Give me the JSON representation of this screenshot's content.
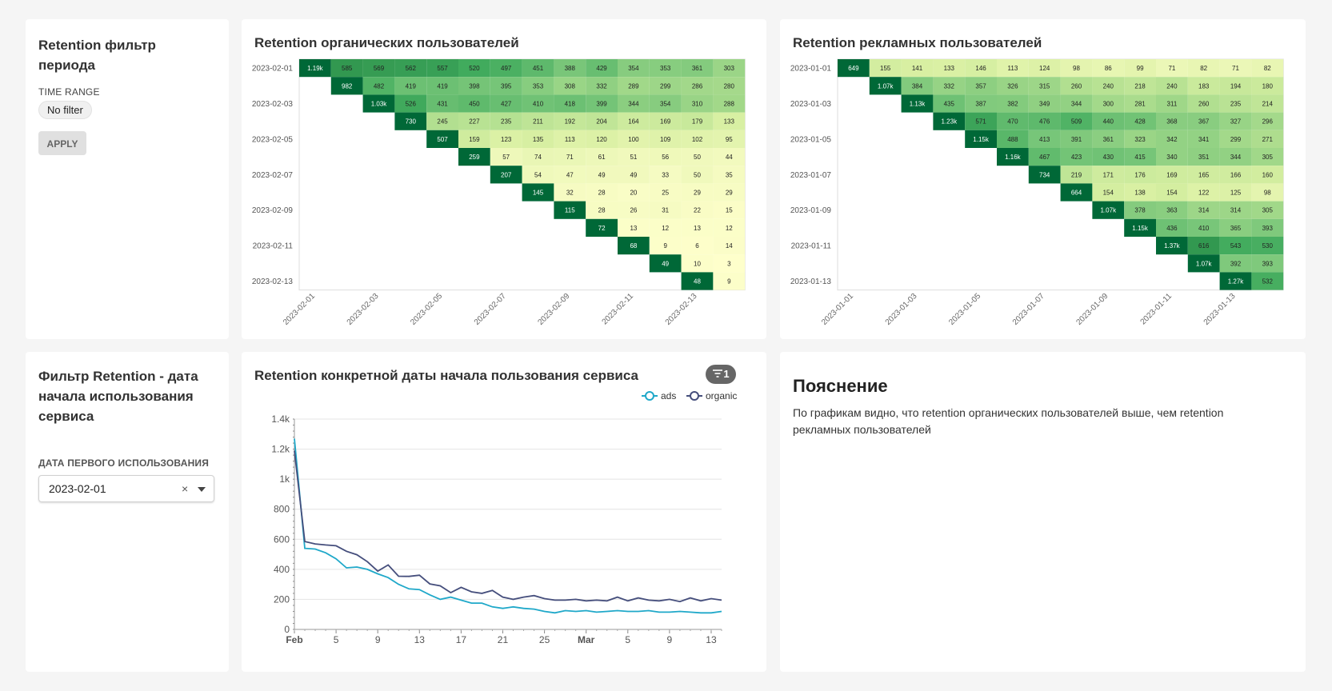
{
  "filter_period": {
    "title": "Retention фильтр периода",
    "label": "TIME RANGE",
    "value": "No filter",
    "apply": "APPLY"
  },
  "organic": {
    "title": "Retention органических пользователей",
    "row_labels": [
      "2023-02-01",
      "2023-02-03",
      "2023-02-05",
      "2023-02-07",
      "2023-02-09",
      "2023-02-11",
      "2023-02-13"
    ],
    "col_labels": [
      "2023-02-01",
      "2023-02-03",
      "2023-02-05",
      "2023-02-07",
      "2023-02-09",
      "2023-02-11",
      "2023-02-13"
    ],
    "rows": [
      [
        "1.19k",
        "585",
        "569",
        "562",
        "557",
        "520",
        "497",
        "451",
        "388",
        "429",
        "354",
        "353",
        "361",
        "303"
      ],
      [
        "982",
        "482",
        "419",
        "419",
        "398",
        "395",
        "353",
        "308",
        "332",
        "289",
        "299",
        "286",
        "280"
      ],
      [
        "1.03k",
        "526",
        "431",
        "450",
        "427",
        "410",
        "418",
        "399",
        "344",
        "354",
        "310",
        "288"
      ],
      [
        "730",
        "245",
        "227",
        "235",
        "211",
        "192",
        "204",
        "164",
        "169",
        "179",
        "133"
      ],
      [
        "507",
        "159",
        "123",
        "135",
        "113",
        "120",
        "100",
        "109",
        "102",
        "95"
      ],
      [
        "259",
        "57",
        "74",
        "71",
        "61",
        "51",
        "56",
        "50",
        "44"
      ],
      [
        "207",
        "54",
        "47",
        "49",
        "49",
        "33",
        "50",
        "35"
      ],
      [
        "145",
        "32",
        "28",
        "20",
        "25",
        "29",
        "29"
      ],
      [
        "115",
        "28",
        "26",
        "31",
        "22",
        "15"
      ],
      [
        "72",
        "13",
        "12",
        "13",
        "12"
      ],
      [
        "68",
        "9",
        "6",
        "14"
      ],
      [
        "49",
        "10",
        "3"
      ],
      [
        "48",
        "9"
      ]
    ]
  },
  "ads": {
    "title": "Retention рекламных пользователей",
    "row_labels": [
      "2023-01-01",
      "2023-01-03",
      "2023-01-05",
      "2023-01-07",
      "2023-01-09",
      "2023-01-11",
      "2023-01-13"
    ],
    "col_labels": [
      "2023-01-01",
      "2023-01-03",
      "2023-01-05",
      "2023-01-07",
      "2023-01-09",
      "2023-01-11",
      "2023-01-13"
    ],
    "rows": [
      [
        "649",
        "155",
        "141",
        "133",
        "146",
        "113",
        "124",
        "98",
        "86",
        "99",
        "71",
        "82",
        "71",
        "82"
      ],
      [
        "1.07k",
        "384",
        "332",
        "357",
        "326",
        "315",
        "260",
        "240",
        "218",
        "240",
        "183",
        "194",
        "180"
      ],
      [
        "1.13k",
        "435",
        "387",
        "382",
        "349",
        "344",
        "300",
        "281",
        "311",
        "260",
        "235",
        "214"
      ],
      [
        "1.23k",
        "571",
        "470",
        "476",
        "509",
        "440",
        "428",
        "368",
        "367",
        "327",
        "296"
      ],
      [
        "1.15k",
        "488",
        "413",
        "391",
        "361",
        "323",
        "342",
        "341",
        "299",
        "271"
      ],
      [
        "1.16k",
        "467",
        "423",
        "430",
        "415",
        "340",
        "351",
        "344",
        "305"
      ],
      [
        "734",
        "219",
        "171",
        "176",
        "169",
        "165",
        "166",
        "160"
      ],
      [
        "664",
        "154",
        "138",
        "154",
        "122",
        "125",
        "98"
      ],
      [
        "1.07k",
        "378",
        "363",
        "314",
        "314",
        "305"
      ],
      [
        "1.15k",
        "436",
        "410",
        "365",
        "393"
      ],
      [
        "1.37k",
        "616",
        "543",
        "530"
      ],
      [
        "1.07k",
        "392",
        "393"
      ],
      [
        "1.27k",
        "532"
      ]
    ]
  },
  "filter_date": {
    "title": "Фильтр Retention - дата начала использования сервиса",
    "label": "ДАТА ПЕРВОГО ИСПОЛЬЗОВАНИЯ",
    "value": "2023-02-01",
    "clear": "×"
  },
  "line_chart": {
    "title": "Retention конкретной даты начала пользования сервиса",
    "badge": "1"
  },
  "explain": {
    "title": "Пояснение",
    "text": "По графикам видно, что retention органических пользователей выше, чем retention рекламных пользователей"
  },
  "chart_data": [
    {
      "type": "heatmap",
      "title": "Retention органических пользователей",
      "colorscale": [
        "#ffffcc",
        "#006837"
      ]
    },
    {
      "type": "heatmap",
      "title": "Retention рекламных пользователей",
      "colorscale": [
        "#ffffcc",
        "#006837"
      ]
    },
    {
      "type": "line",
      "title": "Retention конкретной даты начала пользования сервиса",
      "x_tick_labels": [
        "Feb",
        "5",
        "9",
        "13",
        "17",
        "21",
        "25",
        "Mar",
        "5",
        "9",
        "13"
      ],
      "y_ticks": [
        "0",
        "200",
        "400",
        "600",
        "800",
        "1k",
        "1.2k",
        "1.4k"
      ],
      "ylim": [
        0,
        1400
      ],
      "x": [
        "2023-02-01",
        "2023-02-02",
        "2023-02-03",
        "2023-02-04",
        "2023-02-05",
        "2023-02-06",
        "2023-02-07",
        "2023-02-08",
        "2023-02-09",
        "2023-02-10",
        "2023-02-11",
        "2023-02-12",
        "2023-02-13",
        "2023-02-14",
        "2023-02-15",
        "2023-02-16",
        "2023-02-17",
        "2023-02-18",
        "2023-02-19",
        "2023-02-20",
        "2023-02-21",
        "2023-02-22",
        "2023-02-23",
        "2023-02-24",
        "2023-02-25",
        "2023-02-26",
        "2023-02-27",
        "2023-02-28",
        "2023-03-01",
        "2023-03-02",
        "2023-03-03",
        "2023-03-04",
        "2023-03-05",
        "2023-03-06",
        "2023-03-07",
        "2023-03-08",
        "2023-03-09",
        "2023-03-10",
        "2023-03-11",
        "2023-03-12",
        "2023-03-13",
        "2023-03-14"
      ],
      "series": [
        {
          "name": "ads",
          "color": "#1fa8c9",
          "values": [
            1270,
            540,
            535,
            510,
            470,
            410,
            415,
            400,
            370,
            345,
            300,
            270,
            265,
            230,
            200,
            215,
            195,
            175,
            175,
            150,
            140,
            150,
            140,
            135,
            120,
            110,
            125,
            120,
            125,
            115,
            120,
            125,
            120,
            120,
            125,
            115,
            115,
            120,
            115,
            110,
            110,
            120
          ]
        },
        {
          "name": "organic",
          "color": "#454e7c",
          "values": [
            1190,
            585,
            569,
            562,
            557,
            520,
            497,
            451,
            388,
            429,
            354,
            353,
            361,
            303,
            290,
            245,
            280,
            250,
            240,
            260,
            215,
            200,
            215,
            225,
            205,
            195,
            195,
            200,
            190,
            195,
            190,
            215,
            190,
            210,
            195,
            190,
            200,
            185,
            210,
            190,
            205,
            195
          ]
        }
      ]
    }
  ]
}
